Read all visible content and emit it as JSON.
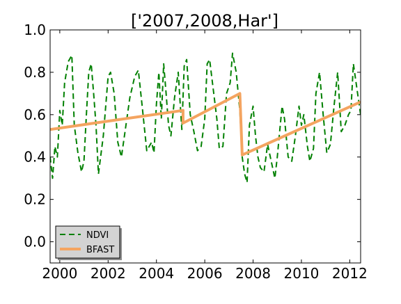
{
  "chart_data": {
    "type": "line",
    "title": "['2007,2008,Har']",
    "xlabel": "",
    "ylabel": "",
    "xlim": [
      1999.6,
      2012.45
    ],
    "ylim": [
      -0.1,
      1.0
    ],
    "x_ticks": [
      2000,
      2002,
      2004,
      2006,
      2008,
      2010,
      2012
    ],
    "x_tick_labels": [
      "2000",
      "2002",
      "2004",
      "2006",
      "2008",
      "2010",
      "2012"
    ],
    "y_ticks": [
      0.0,
      0.2,
      0.4,
      0.6,
      0.8,
      1.0
    ],
    "y_tick_labels": [
      "0.0",
      "0.2",
      "0.4",
      "0.6",
      "0.8",
      "1.0"
    ],
    "grid": false,
    "legend_position": "lower-left",
    "series": [
      {
        "name": "NDVI",
        "style": "dashed",
        "color": "#008000",
        "x": [
          1999.6,
          1999.7,
          1999.8,
          1999.9,
          2000.0,
          2000.1,
          2000.2,
          2000.35,
          2000.5,
          2000.6,
          2000.75,
          2000.9,
          2001.0,
          2001.1,
          2001.2,
          2001.3,
          2001.4,
          2001.5,
          2001.6,
          2001.8,
          2002.0,
          2002.1,
          2002.25,
          2002.4,
          2002.55,
          2002.7,
          2002.9,
          2003.1,
          2003.25,
          2003.4,
          2003.6,
          2003.8,
          2003.9,
          2004.0,
          2004.1,
          2004.2,
          2004.3,
          2004.4,
          2004.5,
          2004.6,
          2004.75,
          2004.9,
          2005.05,
          2005.15,
          2005.25,
          2005.4,
          2005.55,
          2005.7,
          2005.85,
          2006.0,
          2006.1,
          2006.2,
          2006.35,
          2006.5,
          2006.6,
          2006.75,
          2006.9,
          2007.05,
          2007.15,
          2007.3,
          2007.45,
          2007.55,
          2007.65,
          2007.75,
          2007.85,
          2008.0,
          2008.1,
          2008.2,
          2008.3,
          2008.45,
          2008.6,
          2008.75,
          2008.9,
          2009.0,
          2009.1,
          2009.2,
          2009.3,
          2009.45,
          2009.6,
          2009.75,
          2009.9,
          2010.0,
          2010.1,
          2010.25,
          2010.35,
          2010.5,
          2010.6,
          2010.75,
          2010.9,
          2011.05,
          2011.2,
          2011.35,
          2011.5,
          2011.65,
          2011.8,
          2011.95,
          2012.05,
          2012.15,
          2012.3,
          2012.45
        ],
        "y": [
          0.4,
          0.3,
          0.45,
          0.4,
          0.62,
          0.55,
          0.75,
          0.85,
          0.88,
          0.55,
          0.42,
          0.33,
          0.38,
          0.6,
          0.8,
          0.84,
          0.7,
          0.55,
          0.32,
          0.5,
          0.78,
          0.8,
          0.7,
          0.47,
          0.4,
          0.52,
          0.68,
          0.78,
          0.81,
          0.65,
          0.43,
          0.47,
          0.42,
          0.65,
          0.8,
          0.58,
          0.84,
          0.7,
          0.55,
          0.5,
          0.68,
          0.8,
          0.53,
          0.83,
          0.86,
          0.6,
          0.52,
          0.43,
          0.45,
          0.58,
          0.84,
          0.86,
          0.72,
          0.58,
          0.44,
          0.45,
          0.7,
          0.75,
          0.89,
          0.8,
          0.62,
          0.4,
          0.32,
          0.28,
          0.55,
          0.64,
          0.5,
          0.4,
          0.35,
          0.33,
          0.46,
          0.38,
          0.3,
          0.4,
          0.52,
          0.64,
          0.58,
          0.4,
          0.38,
          0.5,
          0.64,
          0.55,
          0.6,
          0.45,
          0.38,
          0.44,
          0.7,
          0.8,
          0.6,
          0.42,
          0.46,
          0.64,
          0.8,
          0.52,
          0.55,
          0.6,
          0.62,
          0.84,
          0.72,
          0.6
        ]
      },
      {
        "name": "BFAST",
        "style": "solid",
        "color": "#f4a460",
        "x": [
          1999.6,
          2005.1,
          2005.1,
          2007.45,
          2007.55,
          2012.45
        ],
        "y": [
          0.53,
          0.62,
          0.56,
          0.7,
          0.41,
          0.66
        ]
      }
    ]
  }
}
